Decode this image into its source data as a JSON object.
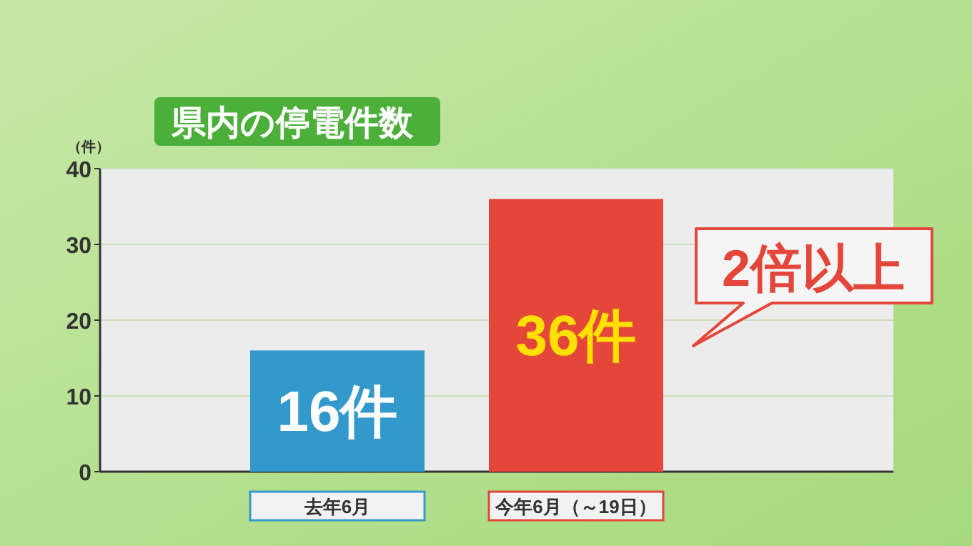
{
  "chart_data": {
    "type": "bar",
    "title": "県内の停電件数",
    "ylabel": "（件）",
    "categories": [
      "去年6月",
      "今年6月（～19日）"
    ],
    "values": [
      16,
      36
    ],
    "colors": [
      "#3399cc",
      "#e5463a"
    ],
    "value_labels": [
      "16件",
      "36件"
    ],
    "ylim": [
      0,
      40
    ],
    "yticks": [
      0,
      10,
      20,
      30,
      40
    ],
    "grid": "y",
    "annotations": [
      "2倍以上"
    ]
  }
}
